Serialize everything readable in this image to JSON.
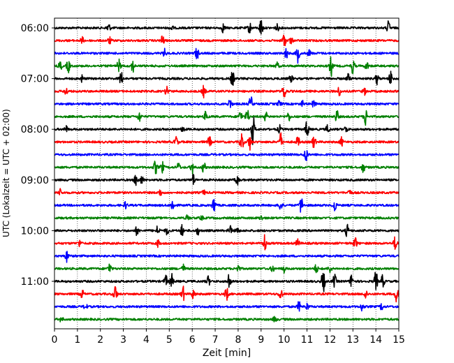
{
  "chart_data": {
    "type": "line",
    "title": "",
    "xlabel": "Zeit  [min]",
    "ylabel": "UTC (Lokalzeit = UTC + 02:00)",
    "xlim": [
      0,
      15
    ],
    "x_ticks": [
      0,
      1,
      2,
      3,
      4,
      5,
      6,
      7,
      8,
      9,
      10,
      11,
      12,
      13,
      14,
      15
    ],
    "x_tick_labels": [
      "0",
      "1",
      "2",
      "3",
      "4",
      "5",
      "6",
      "7",
      "8",
      "9",
      "10",
      "11",
      "12",
      "13",
      "14",
      "15"
    ],
    "y_tick_labels": [
      {
        "label": "06:00",
        "row": 0
      },
      {
        "label": "07:00",
        "row": 4
      },
      {
        "label": "08:00",
        "row": 8
      },
      {
        "label": "09:00",
        "row": 12
      },
      {
        "label": "10:00",
        "row": 16
      },
      {
        "label": "11:00",
        "row": 20
      }
    ],
    "grid": "vertical-dotted",
    "colors": [
      "#000000",
      "#ff0000",
      "#0000ff",
      "#008000"
    ],
    "series": [
      {
        "start": "06:00",
        "color": "#000000",
        "events": [
          [
            2.35,
            0.45
          ],
          [
            5.1,
            0.25
          ],
          [
            7.35,
            0.4
          ],
          [
            8.5,
            0.5
          ],
          [
            9.0,
            0.85
          ],
          [
            9.7,
            0.3
          ],
          [
            14.55,
            0.6
          ]
        ]
      },
      {
        "start": "06:15",
        "color": "#ff0000",
        "events": [
          [
            1.2,
            0.3
          ],
          [
            2.4,
            0.3
          ],
          [
            4.7,
            0.5
          ],
          [
            10.0,
            0.7
          ],
          [
            10.3,
            0.3
          ]
        ]
      },
      {
        "start": "06:30",
        "color": "#0000ff",
        "events": [
          [
            4.8,
            0.35
          ],
          [
            6.2,
            0.6
          ],
          [
            10.1,
            0.5
          ],
          [
            10.6,
            0.8
          ],
          [
            11.1,
            0.3
          ]
        ]
      },
      {
        "start": "06:45",
        "color": "#008000",
        "events": [
          [
            0.25,
            0.4
          ],
          [
            0.6,
            0.6
          ],
          [
            2.8,
            0.6
          ],
          [
            3.4,
            0.6
          ],
          [
            9.7,
            0.3
          ],
          [
            12.05,
            0.9
          ],
          [
            13.0,
            0.7
          ],
          [
            13.6,
            0.4
          ]
        ]
      },
      {
        "start": "07:00",
        "color": "#000000",
        "events": [
          [
            1.2,
            0.3
          ],
          [
            2.9,
            0.65
          ],
          [
            7.75,
            0.75
          ],
          [
            10.3,
            0.35
          ],
          [
            12.8,
            0.4
          ],
          [
            14.05,
            0.5
          ],
          [
            14.65,
            0.7
          ]
        ]
      },
      {
        "start": "07:15",
        "color": "#ff0000",
        "events": [
          [
            0.5,
            0.35
          ],
          [
            4.9,
            0.5
          ],
          [
            6.5,
            0.5
          ],
          [
            10.0,
            0.8
          ],
          [
            12.4,
            0.4
          ],
          [
            13.5,
            0.3
          ]
        ]
      },
      {
        "start": "07:30",
        "color": "#0000ff",
        "events": [
          [
            7.65,
            0.5
          ],
          [
            8.55,
            0.7
          ],
          [
            9.8,
            0.3
          ],
          [
            10.8,
            0.25
          ],
          [
            11.3,
            0.4
          ]
        ]
      },
      {
        "start": "07:45",
        "color": "#008000",
        "events": [
          [
            3.7,
            0.45
          ],
          [
            6.6,
            0.5
          ],
          [
            8.1,
            0.5
          ],
          [
            8.4,
            0.7
          ],
          [
            9.2,
            0.4
          ],
          [
            10.2,
            0.4
          ],
          [
            12.3,
            0.6
          ],
          [
            13.55,
            0.8
          ]
        ]
      },
      {
        "start": "08:00",
        "color": "#000000",
        "events": [
          [
            0.5,
            0.3
          ],
          [
            5.6,
            0.3
          ],
          [
            8.65,
            1.4
          ],
          [
            9.8,
            0.35
          ],
          [
            11.0,
            0.8
          ],
          [
            11.9,
            0.4
          ],
          [
            12.7,
            0.3
          ]
        ]
      },
      {
        "start": "08:15",
        "color": "#ff0000",
        "events": [
          [
            5.3,
            0.5
          ],
          [
            6.75,
            0.5
          ],
          [
            8.15,
            0.95
          ],
          [
            8.5,
            0.7
          ],
          [
            9.85,
            0.8
          ],
          [
            10.6,
            0.5
          ],
          [
            11.3,
            0.6
          ],
          [
            12.5,
            0.4
          ]
        ]
      },
      {
        "start": "08:30",
        "color": "#0000ff",
        "events": [
          [
            10.95,
            0.65
          ]
        ]
      },
      {
        "start": "08:45",
        "color": "#008000",
        "events": [
          [
            4.4,
            0.65
          ],
          [
            4.7,
            0.5
          ],
          [
            5.4,
            0.4
          ],
          [
            6.0,
            0.6
          ],
          [
            6.5,
            0.5
          ],
          [
            13.45,
            0.45
          ]
        ]
      },
      {
        "start": "09:00",
        "color": "#000000",
        "events": [
          [
            3.55,
            0.6
          ],
          [
            3.8,
            0.35
          ],
          [
            6.05,
            0.5
          ],
          [
            7.95,
            0.5
          ]
        ]
      },
      {
        "start": "09:15",
        "color": "#ff0000",
        "events": [
          [
            0.25,
            0.3
          ],
          [
            4.6,
            0.3
          ],
          [
            6.5,
            0.2
          ],
          [
            12.85,
            0.3
          ]
        ]
      },
      {
        "start": "09:30",
        "color": "#0000ff",
        "events": [
          [
            3.1,
            0.3
          ],
          [
            5.15,
            0.6
          ],
          [
            6.95,
            0.75
          ],
          [
            9.85,
            0.5
          ],
          [
            10.75,
            0.8
          ],
          [
            12.2,
            0.6
          ]
        ]
      },
      {
        "start": "09:45",
        "color": "#008000",
        "events": [
          [
            5.8,
            0.3
          ],
          [
            6.4,
            0.2
          ],
          [
            9.0,
            0.2
          ]
        ]
      },
      {
        "start": "10:00",
        "color": "#000000",
        "events": [
          [
            3.6,
            0.45
          ],
          [
            4.5,
            0.45
          ],
          [
            4.9,
            0.35
          ],
          [
            5.55,
            0.5
          ],
          [
            6.25,
            0.35
          ],
          [
            7.65,
            0.4
          ],
          [
            7.95,
            0.4
          ],
          [
            12.75,
            0.55
          ]
        ]
      },
      {
        "start": "10:15",
        "color": "#ff0000",
        "events": [
          [
            1.1,
            0.3
          ],
          [
            4.5,
            0.3
          ],
          [
            9.15,
            0.85
          ],
          [
            10.6,
            0.4
          ],
          [
            13.1,
            0.55
          ],
          [
            14.85,
            0.7
          ]
        ]
      },
      {
        "start": "10:30",
        "color": "#0000ff",
        "events": [
          [
            0.55,
            0.55
          ]
        ]
      },
      {
        "start": "10:45",
        "color": "#008000",
        "events": [
          [
            2.4,
            0.5
          ],
          [
            5.6,
            0.4
          ],
          [
            8.0,
            0.35
          ],
          [
            9.5,
            0.3
          ],
          [
            10.0,
            0.3
          ],
          [
            11.4,
            0.4
          ],
          [
            12.0,
            0.35
          ]
        ]
      },
      {
        "start": "11:00",
        "color": "#000000",
        "events": [
          [
            4.85,
            0.5
          ],
          [
            5.1,
            0.65
          ],
          [
            6.7,
            0.45
          ],
          [
            7.6,
            0.7
          ],
          [
            11.7,
            1.1
          ],
          [
            12.2,
            0.6
          ],
          [
            12.95,
            0.7
          ],
          [
            14.0,
            0.95
          ],
          [
            14.3,
            0.6
          ]
        ]
      },
      {
        "start": "11:15",
        "color": "#ff0000",
        "events": [
          [
            1.2,
            0.4
          ],
          [
            2.65,
            0.8
          ],
          [
            5.6,
            0.65
          ],
          [
            6.05,
            0.45
          ],
          [
            7.5,
            0.6
          ],
          [
            9.85,
            0.6
          ],
          [
            13.55,
            0.45
          ],
          [
            14.9,
            0.7
          ]
        ]
      },
      {
        "start": "11:30",
        "color": "#0000ff",
        "events": [
          [
            1.35,
            0.3
          ],
          [
            10.65,
            0.45
          ],
          [
            11.0,
            0.3
          ],
          [
            13.4,
            0.35
          ],
          [
            14.25,
            0.3
          ]
        ]
      },
      {
        "start": "11:45",
        "color": "#008000",
        "events": [
          [
            0.3,
            0.25
          ],
          [
            9.6,
            0.3
          ]
        ]
      }
    ]
  }
}
